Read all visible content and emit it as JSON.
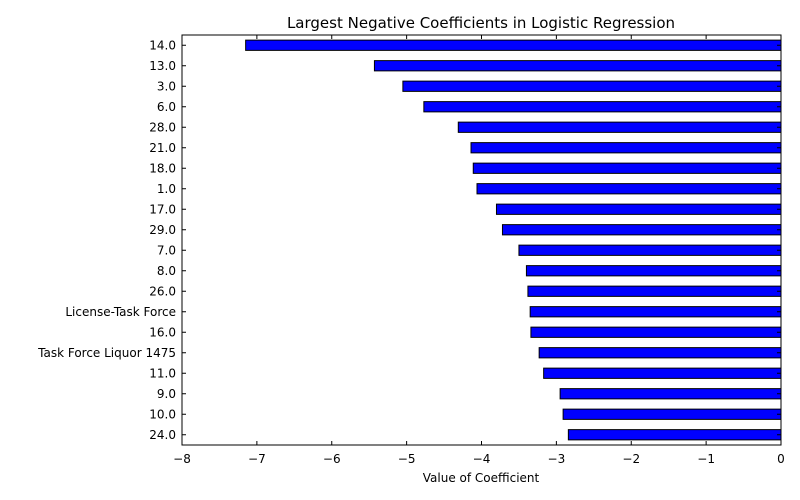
{
  "chart_data": {
    "type": "bar",
    "orientation": "horizontal",
    "title": "Largest Negative Coefficients in Logistic Regression",
    "xlabel": "Value of Coefficient",
    "ylabel": "",
    "xlim": [
      -8,
      0
    ],
    "x_ticks": [
      -8,
      -7,
      -6,
      -5,
      -4,
      -3,
      -2,
      -1,
      0
    ],
    "x_tick_labels": [
      "−8",
      "−7",
      "−6",
      "−5",
      "−4",
      "−3",
      "−2",
      "−1",
      "0"
    ],
    "categories": [
      "14.0",
      "13.0",
      "3.0",
      "6.0",
      "28.0",
      "21.0",
      "18.0",
      "1.0",
      "17.0",
      "29.0",
      "7.0",
      "8.0",
      "26.0",
      "License-Task Force",
      "16.0",
      "Task Force Liquor 1475",
      "11.0",
      "9.0",
      "10.0",
      "24.0"
    ],
    "values": [
      -7.15,
      -5.43,
      -5.05,
      -4.77,
      -4.31,
      -4.14,
      -4.11,
      -4.06,
      -3.8,
      -3.72,
      -3.5,
      -3.4,
      -3.38,
      -3.35,
      -3.34,
      -3.23,
      -3.17,
      -2.95,
      -2.91,
      -2.84
    ],
    "bar_color": "#0000ff",
    "grid": false,
    "legend": "none"
  }
}
